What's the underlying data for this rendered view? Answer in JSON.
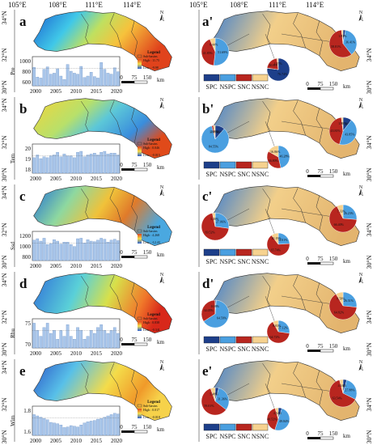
{
  "top_axis": {
    "left": [
      "105°E",
      "108°E",
      "111°E",
      "114°E"
    ],
    "right": [
      "105°E",
      "108°E",
      "111°E",
      "114°E"
    ]
  },
  "lat_ticks": [
    "34°N",
    "32°N",
    "30°N"
  ],
  "north_label": "N",
  "scale": [
    "0",
    "75",
    "150",
    "km"
  ],
  "legend_box": [
    "SPC",
    "NSPC",
    "SNC",
    "NSNC"
  ],
  "legend_colors": {
    "SPC": "#1d3f8a",
    "NSPC": "#4a9fe0",
    "SNC": "#b8261f",
    "NSNC": "#f6d28f"
  },
  "bar_color": "#a9c6ea",
  "years": [
    "2000",
    "2005",
    "2010",
    "2015",
    "2020"
  ],
  "panels": [
    {
      "letter": "a",
      "ylabel": "Pre",
      "yticks": [
        "1000",
        "800",
        "600"
      ],
      "ylim": [
        520,
        1120
      ],
      "legend_title": "Legend",
      "legend_sub": "Sub-basins",
      "legend_high": "High : 11.75",
      "legend_low": "Low : -9.98",
      "values": [
        900,
        700,
        680,
        860,
        910,
        760,
        780,
        870,
        720,
        650,
        960,
        820,
        780,
        760,
        920,
        690,
        720,
        800,
        710,
        680,
        1000,
        860,
        780,
        760,
        890,
        810
      ]
    },
    {
      "letter": "b",
      "ylabel": "Tem",
      "yticks": [
        "20",
        "19",
        "18"
      ],
      "ylim": [
        17.6,
        20.8
      ],
      "legend_title": "Legend",
      "legend_sub": "Sub-basins",
      "legend_high": "High : 0.046",
      "legend_low": "Low : -0.015",
      "values": [
        19.3,
        19.6,
        19.2,
        19.4,
        19.3,
        19.5,
        19.6,
        19.9,
        19.4,
        19.7,
        19.5,
        19.5,
        19.3,
        19.9,
        20.0,
        19.4,
        19.6,
        19.7,
        19.8,
        19.6,
        19.9,
        20.0,
        19.7,
        19.8,
        19.8,
        19.6
      ]
    },
    {
      "letter": "c",
      "ylabel": "Ssd",
      "yticks": [
        "1200",
        "1000",
        "800"
      ],
      "ylim": [
        720,
        1320
      ],
      "legend_title": "Legend",
      "legend_sub": "Sub-basins",
      "legend_high": "High : 4.268",
      "legend_low": "Low : -12.43",
      "values": [
        1140,
        1170,
        1120,
        1180,
        1050,
        1070,
        1150,
        1120,
        1060,
        1100,
        1100,
        1050,
        1010,
        1170,
        1180,
        1080,
        1150,
        1120,
        1110,
        1140,
        1180,
        1160,
        1100,
        1140,
        1160,
        1130
      ]
    },
    {
      "letter": "d",
      "ylabel": "Rhu",
      "yticks": [
        "75",
        "70"
      ],
      "ylim": [
        69,
        79
      ],
      "legend_title": "Legend",
      "legend_sub": "Sub-basins",
      "legend_high": "High : 0.038",
      "legend_low": "Low : -0.341",
      "values": [
        77.5,
        75,
        73,
        76,
        77.5,
        74,
        75,
        72,
        75,
        73,
        77,
        73,
        72,
        76,
        75,
        72,
        73,
        75,
        74,
        76,
        77,
        75,
        74,
        75,
        76,
        74
      ]
    },
    {
      "letter": "e",
      "ylabel": "Wim",
      "yticks": [
        "1.8",
        "1.6"
      ],
      "ylim": [
        1.5,
        1.95
      ],
      "legend_title": "Legend",
      "legend_sub": "Sub-basins",
      "legend_high": "High : 0.017",
      "legend_low": "Low : -0.018",
      "values": [
        1.82,
        1.8,
        1.78,
        1.76,
        1.74,
        1.7,
        1.69,
        1.68,
        1.66,
        1.62,
        1.63,
        1.65,
        1.64,
        1.63,
        1.66,
        1.69,
        1.71,
        1.72,
        1.73,
        1.75,
        1.76,
        1.78,
        1.8,
        1.82,
        1.84,
        1.83
      ]
    }
  ],
  "right_panels": [
    {
      "letter": "a'",
      "pies": [
        [
          "0.02%",
          "51.69%",
          "41.85%",
          "6.44%"
        ],
        [
          "76.74%",
          "0.49%",
          "20.80%",
          "1.97%"
        ],
        [
          "2.97%",
          "36.41%",
          "58.81%",
          "1.81%"
        ]
      ]
    },
    {
      "letter": "b'",
      "pies": [
        [
          "11.40%",
          "84.55%",
          "1.99%",
          "2.06%"
        ],
        [
          "0.06%",
          "46.28%",
          "36.80%",
          "16.86%"
        ],
        [
          "10.36%",
          "43.85%",
          "43.81%",
          "1.98%"
        ]
      ]
    },
    {
      "letter": "c'",
      "pies": [
        [
          "0.12%",
          "27.06%",
          "69.52%",
          "3.30%"
        ],
        [
          "0.06%",
          "24.01%",
          "65.74%",
          "10.19%"
        ],
        [
          "0.04%",
          "26.23%",
          "66.40%",
          "7.33%"
        ]
      ]
    },
    {
      "letter": "d'",
      "pies": [
        [
          "1.28%",
          "64.59%",
          "34.05%",
          "0.08%"
        ],
        [
          "0.13%",
          "27.12%",
          "64.72%",
          "8.03%"
        ],
        [
          "0.09%",
          "26.51%",
          "64.82%",
          "8.58%"
        ]
      ]
    },
    {
      "letter": "e'",
      "pies": [
        [
          "4.15%",
          "31.36%",
          "59.01%",
          "5.48%"
        ],
        [
          "5.12%",
          "49.84%",
          "40.52%",
          "4.52%"
        ],
        [
          "4.42%",
          "27.88%",
          "63.54%",
          "4.16%"
        ]
      ]
    }
  ]
}
